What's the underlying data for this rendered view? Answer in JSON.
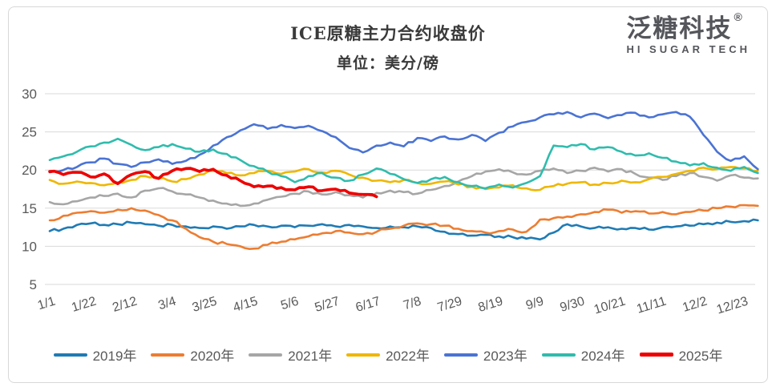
{
  "header": {
    "title": "ICE原糖主力合约收盘价",
    "subtitle": "单位：美分/磅"
  },
  "brand": {
    "name": "泛糖科技",
    "registered_mark": "®",
    "tagline": "HI SUGAR TECH"
  },
  "chart_data": {
    "type": "line",
    "title": "ICE原糖主力合约收盘价",
    "unit": "美分/磅",
    "ylim": [
      5,
      30
    ],
    "yticks": [
      5,
      10,
      15,
      20,
      25,
      30
    ],
    "grid": "horizontal-only",
    "grid_color": "#dadada",
    "axis_text_color": "#595959",
    "legend_position": "bottom",
    "x_tick_labels": [
      "1/1",
      "1/22",
      "2/12",
      "3/4",
      "3/25",
      "4/15",
      "5/6",
      "5/27",
      "6/17",
      "7/8",
      "7/29",
      "8/19",
      "9/9",
      "9/30",
      "10/21",
      "11/11",
      "12/2",
      "12/23"
    ],
    "x_tick_days": [
      1,
      22,
      43,
      63,
      84,
      105,
      126,
      147,
      168,
      189,
      210,
      231,
      252,
      273,
      294,
      315,
      336,
      357
    ],
    "x_domain_days": [
      1,
      365
    ],
    "series": [
      {
        "name": "2019年",
        "color": "#1F7BB4",
        "line_width": 2.6,
        "start_day": 1,
        "step_days": 7,
        "values": [
          12.0,
          12.3,
          12.8,
          13.0,
          12.8,
          12.9,
          13.1,
          12.9,
          12.7,
          12.8,
          12.6,
          12.4,
          12.6,
          12.3,
          12.6,
          12.8,
          12.6,
          12.7,
          12.5,
          12.7,
          12.9,
          12.6,
          12.8,
          12.6,
          12.4,
          12.6,
          12.5,
          12.6,
          12.4,
          11.9,
          11.6,
          11.4,
          11.5,
          11.3,
          11.2,
          11.0,
          10.9,
          11.8,
          12.9,
          12.6,
          12.4,
          12.5,
          12.3,
          12.4,
          12.2,
          12.5,
          12.6,
          12.7,
          12.9,
          13.1,
          13.2,
          13.3,
          13.4
        ]
      },
      {
        "name": "2020年",
        "color": "#ED7D31",
        "line_width": 2.6,
        "start_day": 1,
        "step_days": 7,
        "values": [
          13.4,
          14.0,
          14.4,
          14.6,
          14.4,
          14.8,
          15.0,
          14.7,
          14.1,
          13.4,
          12.3,
          11.2,
          10.6,
          10.3,
          10.0,
          9.7,
          10.2,
          10.6,
          10.9,
          11.3,
          11.7,
          12.0,
          11.8,
          11.6,
          11.9,
          12.3,
          12.7,
          13.0,
          12.9,
          12.7,
          12.3,
          12.0,
          11.8,
          12.0,
          12.2,
          11.9,
          13.5,
          13.7,
          13.9,
          14.2,
          14.5,
          14.8,
          14.4,
          14.6,
          14.3,
          14.5,
          14.2,
          14.5,
          14.7,
          15.0,
          15.2,
          15.4,
          15.3
        ]
      },
      {
        "name": "2021年",
        "color": "#A6A6A6",
        "line_width": 2.6,
        "start_day": 1,
        "step_days": 7,
        "values": [
          15.8,
          15.5,
          15.9,
          16.4,
          16.6,
          16.9,
          16.4,
          17.3,
          17.6,
          17.2,
          16.8,
          16.4,
          16.0,
          15.6,
          15.3,
          15.6,
          16.1,
          16.5,
          16.9,
          17.2,
          16.8,
          17.1,
          16.7,
          16.4,
          17.0,
          17.3,
          17.1,
          16.9,
          17.4,
          17.9,
          18.5,
          19.2,
          19.8,
          20.1,
          19.7,
          19.4,
          19.9,
          20.2,
          19.6,
          19.9,
          20.3,
          19.8,
          20.1,
          19.5,
          19.0,
          18.7,
          19.2,
          19.6,
          19.1,
          18.6,
          19.3,
          19.0,
          18.9
        ]
      },
      {
        "name": "2022年",
        "color": "#EFB700",
        "line_width": 2.6,
        "start_day": 1,
        "step_days": 7,
        "values": [
          18.7,
          18.2,
          18.5,
          18.3,
          18.0,
          18.4,
          18.7,
          19.2,
          18.9,
          18.5,
          18.8,
          19.4,
          19.9,
          19.6,
          19.3,
          19.6,
          19.9,
          19.5,
          19.8,
          20.1,
          19.7,
          19.9,
          19.4,
          19.0,
          18.6,
          18.4,
          18.7,
          18.3,
          18.2,
          18.5,
          18.1,
          17.8,
          17.5,
          17.7,
          18.0,
          17.6,
          17.4,
          17.9,
          18.2,
          18.4,
          18.1,
          18.3,
          18.6,
          18.4,
          18.8,
          19.1,
          19.5,
          19.9,
          20.3,
          20.1,
          20.4,
          20.2,
          19.9
        ]
      },
      {
        "name": "2023年",
        "color": "#4A73D4",
        "line_width": 2.6,
        "start_day": 1,
        "step_days": 7,
        "values": [
          19.7,
          20.0,
          20.4,
          21.0,
          21.5,
          20.8,
          20.4,
          21.0,
          21.4,
          20.8,
          21.2,
          22.0,
          23.2,
          24.3,
          25.2,
          26.0,
          25.4,
          25.9,
          25.5,
          25.8,
          25.1,
          24.3,
          22.9,
          22.3,
          23.2,
          23.6,
          23.1,
          24.2,
          23.8,
          24.4,
          24.0,
          24.6,
          23.8,
          24.9,
          25.7,
          26.3,
          26.9,
          27.3,
          27.6,
          26.9,
          27.4,
          26.8,
          27.2,
          27.5,
          26.9,
          27.3,
          27.6,
          27.0,
          24.6,
          22.4,
          21.2,
          21.8,
          20.1
        ]
      },
      {
        "name": "2024年",
        "color": "#2FBCAD",
        "line_width": 2.6,
        "start_day": 1,
        "step_days": 7,
        "values": [
          21.3,
          21.8,
          22.4,
          23.1,
          23.6,
          24.1,
          23.3,
          22.6,
          23.0,
          23.4,
          22.8,
          22.4,
          22.7,
          22.1,
          21.3,
          20.5,
          19.8,
          19.2,
          18.4,
          19.2,
          19.6,
          19.0,
          18.6,
          19.4,
          20.2,
          19.5,
          18.8,
          18.3,
          18.8,
          19.1,
          18.4,
          17.9,
          17.6,
          18.1,
          17.7,
          18.3,
          19.2,
          23.2,
          23.0,
          23.4,
          22.7,
          23.0,
          22.4,
          21.9,
          22.2,
          21.6,
          21.1,
          20.6,
          20.9,
          20.3,
          19.9,
          20.4,
          19.6
        ]
      },
      {
        "name": "2025年",
        "color": "#EE0000",
        "line_width": 3.6,
        "start_day": 1,
        "step_days": 7,
        "values": [
          19.8,
          19.4,
          19.7,
          19.1,
          19.5,
          18.2,
          19.4,
          19.8,
          18.9,
          19.9,
          20.2,
          19.8,
          20.1,
          19.3,
          18.6,
          17.8,
          17.9,
          17.7,
          17.4,
          17.8,
          17.3,
          17.5,
          17.0,
          16.8,
          16.5
        ]
      }
    ]
  }
}
